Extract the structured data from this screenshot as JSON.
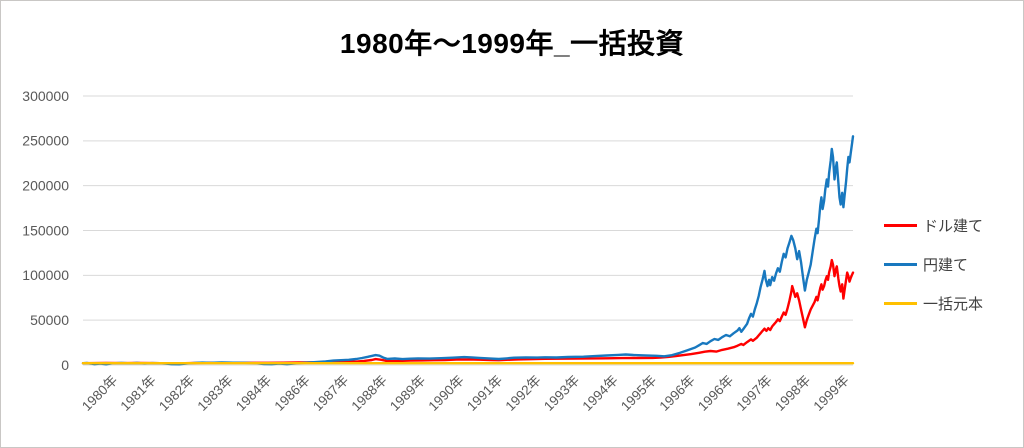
{
  "title": "1980年～1999年_一括投資",
  "y_axis": {
    "ticks": [
      "0",
      "50000",
      "100000",
      "150000",
      "200000",
      "250000",
      "300000"
    ]
  },
  "x_axis": {
    "labels": [
      "1980年",
      "1981年",
      "1982年",
      "1983年",
      "1984年",
      "1986年",
      "1987年",
      "1988年",
      "1989年",
      "1990年",
      "1991年",
      "1992年",
      "1993年",
      "1994年",
      "1995年",
      "1996年",
      "1996年",
      "1997年",
      "1998年",
      "1999年"
    ]
  },
  "legend": {
    "items": [
      {
        "id": "dollar",
        "label": "ドル建て",
        "color": "#FF0000"
      },
      {
        "id": "yen",
        "label": "円建て",
        "color": "#1878BF"
      },
      {
        "id": "principal",
        "label": "一括元本",
        "color": "#FFC000"
      }
    ]
  },
  "colors": {
    "grid": "#D9D9D9",
    "tick_text": "#595959",
    "legend_text": "#404040",
    "frame": "#C9C7C5"
  },
  "chart_data": {
    "type": "line",
    "title": "1980年～1999年_一括投資",
    "x_range": [
      1980,
      2000
    ],
    "ylim": [
      0,
      300000
    ],
    "y_tick_step": 50000,
    "grid": "horizontal-only",
    "legend_position": "right",
    "x_tick_labels": [
      "1980年",
      "1981年",
      "1982年",
      "1983年",
      "1984年",
      "1986年",
      "1987年",
      "1988年",
      "1989年",
      "1990年",
      "1991年",
      "1992年",
      "1993年",
      "1994年",
      "1995年",
      "1996年",
      "1996年",
      "1997年",
      "1998年",
      "1999年"
    ],
    "series": [
      {
        "id": "dollar",
        "name": "ドル建て",
        "color": "#FF0000",
        "width": 2.4,
        "points": [
          [
            1980.0,
            2000
          ],
          [
            1980.3,
            2100
          ],
          [
            1980.6,
            2250
          ],
          [
            1981.0,
            2150
          ],
          [
            1981.4,
            2300
          ],
          [
            1981.8,
            2100
          ],
          [
            1982.2,
            1950
          ],
          [
            1982.5,
            1850
          ],
          [
            1982.8,
            2150
          ],
          [
            1983.2,
            2400
          ],
          [
            1983.6,
            2500
          ],
          [
            1984.0,
            2450
          ],
          [
            1984.4,
            2400
          ],
          [
            1984.8,
            2450
          ],
          [
            1985.2,
            2550
          ],
          [
            1985.6,
            2750
          ],
          [
            1986.0,
            3000
          ],
          [
            1986.4,
            3400
          ],
          [
            1986.8,
            3700
          ],
          [
            1987.1,
            3800
          ],
          [
            1987.3,
            4600
          ],
          [
            1987.5,
            5600
          ],
          [
            1987.6,
            6600
          ],
          [
            1987.75,
            5800
          ],
          [
            1987.9,
            4300
          ],
          [
            1988.2,
            4600
          ],
          [
            1988.5,
            4900
          ],
          [
            1988.8,
            5100
          ],
          [
            1989.1,
            5300
          ],
          [
            1989.4,
            5600
          ],
          [
            1989.7,
            6000
          ],
          [
            1990.0,
            6200
          ],
          [
            1990.3,
            5900
          ],
          [
            1990.6,
            5500
          ],
          [
            1990.8,
            5300
          ],
          [
            1991.0,
            5800
          ],
          [
            1991.3,
            6300
          ],
          [
            1991.6,
            6500
          ],
          [
            1992.0,
            6900
          ],
          [
            1992.4,
            7000
          ],
          [
            1992.8,
            7200
          ],
          [
            1993.2,
            7400
          ],
          [
            1993.6,
            7500
          ],
          [
            1994.0,
            7700
          ],
          [
            1994.4,
            7800
          ],
          [
            1994.8,
            7900
          ],
          [
            1995.0,
            8200
          ],
          [
            1995.2,
            9000
          ],
          [
            1995.4,
            10000
          ],
          [
            1995.6,
            11000
          ],
          [
            1995.8,
            12200
          ],
          [
            1996.0,
            13600
          ],
          [
            1996.15,
            14800
          ],
          [
            1996.3,
            15600
          ],
          [
            1996.45,
            15000
          ],
          [
            1996.6,
            16800
          ],
          [
            1996.75,
            18200
          ],
          [
            1996.9,
            19800
          ],
          [
            1997.0,
            21500
          ],
          [
            1997.1,
            23500
          ],
          [
            1997.15,
            22300
          ],
          [
            1997.25,
            25500
          ],
          [
            1997.35,
            28500
          ],
          [
            1997.4,
            27000
          ],
          [
            1997.5,
            30500
          ],
          [
            1997.55,
            33000
          ],
          [
            1997.6,
            35500
          ],
          [
            1997.65,
            38000
          ],
          [
            1997.7,
            40500
          ],
          [
            1997.75,
            38000
          ],
          [
            1997.8,
            41000
          ],
          [
            1997.85,
            39000
          ],
          [
            1997.9,
            43000
          ],
          [
            1997.95,
            45500
          ],
          [
            1998.0,
            48000
          ],
          [
            1998.05,
            51000
          ],
          [
            1998.1,
            49000
          ],
          [
            1998.15,
            54000
          ],
          [
            1998.2,
            58500
          ],
          [
            1998.25,
            56000
          ],
          [
            1998.3,
            63000
          ],
          [
            1998.35,
            72000
          ],
          [
            1998.4,
            82000
          ],
          [
            1998.42,
            88000
          ],
          [
            1998.45,
            84000
          ],
          [
            1998.5,
            76000
          ],
          [
            1998.55,
            80000
          ],
          [
            1998.6,
            72000
          ],
          [
            1998.65,
            62000
          ],
          [
            1998.7,
            52000
          ],
          [
            1998.75,
            42000
          ],
          [
            1998.8,
            50000
          ],
          [
            1998.85,
            56000
          ],
          [
            1998.9,
            62000
          ],
          [
            1998.95,
            66000
          ],
          [
            1999.0,
            70000
          ],
          [
            1999.05,
            76000
          ],
          [
            1999.08,
            72000
          ],
          [
            1999.12,
            80000
          ],
          [
            1999.15,
            86000
          ],
          [
            1999.18,
            90000
          ],
          [
            1999.21,
            84000
          ],
          [
            1999.25,
            88000
          ],
          [
            1999.28,
            94000
          ],
          [
            1999.32,
            99000
          ],
          [
            1999.35,
            95000
          ],
          [
            1999.38,
            103000
          ],
          [
            1999.42,
            110000
          ],
          [
            1999.45,
            117000
          ],
          [
            1999.48,
            112000
          ],
          [
            1999.52,
            99000
          ],
          [
            1999.55,
            106000
          ],
          [
            1999.58,
            110000
          ],
          [
            1999.62,
            96000
          ],
          [
            1999.65,
            88000
          ],
          [
            1999.68,
            82000
          ],
          [
            1999.72,
            90000
          ],
          [
            1999.75,
            74000
          ],
          [
            1999.78,
            83000
          ],
          [
            1999.82,
            95000
          ],
          [
            1999.85,
            103000
          ],
          [
            1999.88,
            99000
          ],
          [
            1999.91,
            93000
          ],
          [
            1999.94,
            97000
          ],
          [
            1999.97,
            100000
          ],
          [
            2000.0,
            103000
          ]
        ]
      },
      {
        "id": "yen",
        "name": "円建て",
        "color": "#1878BF",
        "width": 2.4,
        "points": [
          [
            1980.0,
            2000
          ],
          [
            1980.1,
            2200
          ],
          [
            1980.2,
            1700
          ],
          [
            1980.3,
            900
          ],
          [
            1980.45,
            1600
          ],
          [
            1980.6,
            800
          ],
          [
            1980.75,
            1900
          ],
          [
            1981.0,
            2200
          ],
          [
            1981.2,
            1900
          ],
          [
            1981.4,
            2200
          ],
          [
            1981.6,
            1800
          ],
          [
            1981.8,
            2100
          ],
          [
            1982.0,
            2000
          ],
          [
            1982.15,
            1600
          ],
          [
            1982.3,
            900
          ],
          [
            1982.5,
            800
          ],
          [
            1982.7,
            1800
          ],
          [
            1982.9,
            2300
          ],
          [
            1983.1,
            2700
          ],
          [
            1983.3,
            2500
          ],
          [
            1983.6,
            2800
          ],
          [
            1983.9,
            2600
          ],
          [
            1984.2,
            2400
          ],
          [
            1984.5,
            2000
          ],
          [
            1984.7,
            1000
          ],
          [
            1984.9,
            900
          ],
          [
            1985.1,
            1700
          ],
          [
            1985.3,
            900
          ],
          [
            1985.5,
            1800
          ],
          [
            1985.7,
            2300
          ],
          [
            1985.9,
            2800
          ],
          [
            1986.1,
            3400
          ],
          [
            1986.3,
            4000
          ],
          [
            1986.5,
            4900
          ],
          [
            1986.7,
            5300
          ],
          [
            1986.9,
            5800
          ],
          [
            1987.1,
            6700
          ],
          [
            1987.25,
            7800
          ],
          [
            1987.4,
            9200
          ],
          [
            1987.5,
            10200
          ],
          [
            1987.6,
            11000
          ],
          [
            1987.7,
            10400
          ],
          [
            1987.8,
            8200
          ],
          [
            1987.9,
            6800
          ],
          [
            1988.1,
            7200
          ],
          [
            1988.3,
            6600
          ],
          [
            1988.5,
            7000
          ],
          [
            1988.7,
            7400
          ],
          [
            1989.0,
            7100
          ],
          [
            1989.3,
            7600
          ],
          [
            1989.6,
            8100
          ],
          [
            1989.9,
            8800
          ],
          [
            1990.1,
            8500
          ],
          [
            1990.3,
            7900
          ],
          [
            1990.6,
            7100
          ],
          [
            1990.8,
            6700
          ],
          [
            1991.0,
            7400
          ],
          [
            1991.2,
            8100
          ],
          [
            1991.5,
            8400
          ],
          [
            1991.8,
            8200
          ],
          [
            1992.0,
            8600
          ],
          [
            1992.3,
            8400
          ],
          [
            1992.6,
            8900
          ],
          [
            1993.0,
            9300
          ],
          [
            1993.3,
            9900
          ],
          [
            1993.6,
            10600
          ],
          [
            1993.9,
            11300
          ],
          [
            1994.1,
            11700
          ],
          [
            1994.3,
            11100
          ],
          [
            1994.6,
            10700
          ],
          [
            1994.9,
            10300
          ],
          [
            1995.1,
            9700
          ],
          [
            1995.3,
            10900
          ],
          [
            1995.5,
            13500
          ],
          [
            1995.7,
            16500
          ],
          [
            1995.9,
            19500
          ],
          [
            1996.0,
            22000
          ],
          [
            1996.1,
            24500
          ],
          [
            1996.2,
            23500
          ],
          [
            1996.3,
            26500
          ],
          [
            1996.4,
            29000
          ],
          [
            1996.5,
            28000
          ],
          [
            1996.6,
            31000
          ],
          [
            1996.7,
            33500
          ],
          [
            1996.8,
            32000
          ],
          [
            1996.9,
            35500
          ],
          [
            1997.0,
            38500
          ],
          [
            1997.05,
            41000
          ],
          [
            1997.1,
            37000
          ],
          [
            1997.15,
            40000
          ],
          [
            1997.25,
            46000
          ],
          [
            1997.3,
            52000
          ],
          [
            1997.35,
            57000
          ],
          [
            1997.4,
            54000
          ],
          [
            1997.45,
            62000
          ],
          [
            1997.5,
            69000
          ],
          [
            1997.55,
            77000
          ],
          [
            1997.6,
            87000
          ],
          [
            1997.65,
            95000
          ],
          [
            1997.7,
            105000
          ],
          [
            1997.73,
            96000
          ],
          [
            1997.78,
            88000
          ],
          [
            1997.82,
            95000
          ],
          [
            1997.85,
            89000
          ],
          [
            1997.9,
            98000
          ],
          [
            1997.95,
            94000
          ],
          [
            1998.0,
            102000
          ],
          [
            1998.05,
            108000
          ],
          [
            1998.1,
            104000
          ],
          [
            1998.15,
            115000
          ],
          [
            1998.2,
            124000
          ],
          [
            1998.25,
            120000
          ],
          [
            1998.3,
            130000
          ],
          [
            1998.35,
            137000
          ],
          [
            1998.4,
            144000
          ],
          [
            1998.45,
            139000
          ],
          [
            1998.5,
            130000
          ],
          [
            1998.55,
            118000
          ],
          [
            1998.6,
            127000
          ],
          [
            1998.65,
            115000
          ],
          [
            1998.7,
            98000
          ],
          [
            1998.75,
            83000
          ],
          [
            1998.8,
            95000
          ],
          [
            1998.85,
            103000
          ],
          [
            1998.9,
            112000
          ],
          [
            1998.95,
            126000
          ],
          [
            1999.0,
            140000
          ],
          [
            1999.05,
            152000
          ],
          [
            1999.08,
            147000
          ],
          [
            1999.12,
            163000
          ],
          [
            1999.15,
            178000
          ],
          [
            1999.18,
            187000
          ],
          [
            1999.21,
            174000
          ],
          [
            1999.25,
            183000
          ],
          [
            1999.28,
            196000
          ],
          [
            1999.32,
            207000
          ],
          [
            1999.35,
            199000
          ],
          [
            1999.38,
            214000
          ],
          [
            1999.42,
            228000
          ],
          [
            1999.45,
            241000
          ],
          [
            1999.48,
            232000
          ],
          [
            1999.52,
            207000
          ],
          [
            1999.55,
            219000
          ],
          [
            1999.58,
            226000
          ],
          [
            1999.62,
            203000
          ],
          [
            1999.65,
            187000
          ],
          [
            1999.68,
            179000
          ],
          [
            1999.72,
            192000
          ],
          [
            1999.75,
            176000
          ],
          [
            1999.78,
            188000
          ],
          [
            1999.82,
            205000
          ],
          [
            1999.85,
            219000
          ],
          [
            1999.88,
            232000
          ],
          [
            1999.91,
            226000
          ],
          [
            1999.94,
            236000
          ],
          [
            1999.97,
            245000
          ],
          [
            2000.0,
            255000
          ]
        ]
      },
      {
        "id": "principal",
        "name": "一括元本",
        "color": "#FFC000",
        "width": 2.4,
        "points": [
          [
            1980.0,
            2000
          ],
          [
            2000.0,
            2000
          ]
        ]
      }
    ]
  }
}
